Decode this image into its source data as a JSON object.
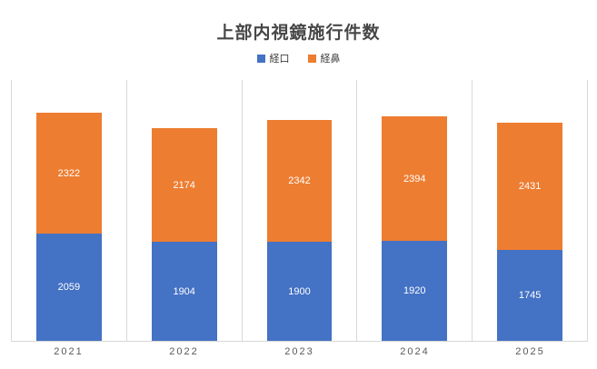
{
  "title": "上部内視鏡施行件数",
  "colors": {
    "series_oral": "#4472C4",
    "series_nasal": "#ED7D31",
    "gridline": "#D9D9D9",
    "axis_line": "#D6D6D6",
    "title_text": "#474747",
    "axis_text": "#595959",
    "data_label_text": "#FFFFFF"
  },
  "legend": {
    "items": [
      {
        "label": "経口",
        "color": "#4472C4"
      },
      {
        "label": "経鼻",
        "color": "#ED7D31"
      }
    ]
  },
  "chart_data": {
    "type": "bar",
    "stacked": true,
    "title": "上部内視鏡施行件数",
    "categories": [
      "2021",
      "2022",
      "2023",
      "2024",
      "2025"
    ],
    "series": [
      {
        "name": "経口",
        "color": "#4472C4",
        "values": [
          2059,
          1904,
          1900,
          1920,
          1745
        ]
      },
      {
        "name": "経鼻",
        "color": "#ED7D31",
        "values": [
          2322,
          2174,
          2342,
          2394,
          2431
        ]
      }
    ],
    "totals": [
      4381,
      4078,
      4242,
      4314,
      4176
    ],
    "xlabel": "",
    "ylabel": "",
    "ylim": [
      0,
      5000
    ],
    "y_axis_labels_visible": false,
    "grid": "vertical-category-boundaries",
    "legend_position": "top-center",
    "data_labels": "inside-center-white"
  }
}
